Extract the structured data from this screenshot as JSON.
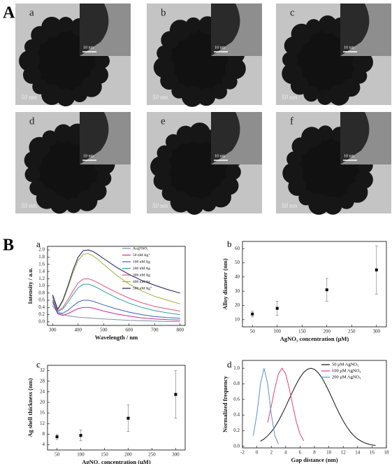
{
  "figure_labels": [
    "A",
    "B"
  ],
  "panels": [
    {
      "label": "a",
      "scale": "50 nm",
      "inset_scale": "10 nm"
    },
    {
      "label": "b",
      "scale": "50 nm",
      "inset_scale": "10 nm"
    },
    {
      "label": "c",
      "scale": "50 nm",
      "inset_scale": "10 nm"
    },
    {
      "label": "d",
      "scale": "50 nm",
      "inset_scale": "10 nm"
    },
    {
      "label": "e",
      "scale": "50 nm",
      "inset_scale": "10 nm"
    },
    {
      "label": "f",
      "scale": "50 nm",
      "inset_scale": "10 nm"
    }
  ],
  "chart_data": [
    {
      "type": "line",
      "panel": "a",
      "x_label": "Wavelength / nm",
      "y_label": "Intensity / a.u.",
      "x": [
        300,
        320,
        340,
        360,
        380,
        400,
        420,
        440,
        460,
        480,
        500,
        550,
        600,
        650,
        700,
        750,
        800
      ],
      "xlim": [
        280,
        820
      ],
      "xticks": [
        300,
        400,
        500,
        600,
        700,
        800
      ],
      "ylim": [
        -0.1,
        2.1
      ],
      "yticks": [
        {
          "value": 0,
          "label": "0.0"
        },
        {
          "value": 0.2,
          "label": "0.2"
        },
        {
          "value": 0.4,
          "label": "0.4"
        },
        {
          "value": 0.6,
          "label": "0.6"
        },
        {
          "value": 0.8,
          "label": "0.8"
        },
        {
          "value": 1,
          "label": "1.0"
        },
        {
          "value": 1.2,
          "label": "1.2"
        },
        {
          "value": 1.4,
          "label": "1.4"
        },
        {
          "value": 1.6,
          "label": "1.6"
        },
        {
          "value": 1.8,
          "label": "1.8"
        },
        {
          "value": 2,
          "label": "2.0"
        }
      ],
      "series": [
        {
          "name": "Au@SiO₂",
          "color": "#7f8fa6",
          "values": [
            0.45,
            0.25,
            0.2,
            0.17,
            0.15,
            0.13,
            0.12,
            0.11,
            0.1,
            0.09,
            0.08,
            0.06,
            0.04,
            0.03,
            0.02,
            0.01,
            0.01
          ]
        },
        {
          "name": "50 nM Ag⁺",
          "color": "#d02c90",
          "values": [
            0.55,
            0.22,
            0.18,
            0.23,
            0.3,
            0.37,
            0.4,
            0.4,
            0.38,
            0.34,
            0.3,
            0.22,
            0.16,
            0.11,
            0.08,
            0.06,
            0.05
          ]
        },
        {
          "name": "100 nM Ag",
          "color": "#3a5fcd",
          "values": [
            0.6,
            0.25,
            0.24,
            0.32,
            0.44,
            0.55,
            0.6,
            0.6,
            0.57,
            0.52,
            0.47,
            0.36,
            0.27,
            0.2,
            0.15,
            0.12,
            0.1
          ]
        },
        {
          "name": "200 nM Ag",
          "color": "#2aa198",
          "values": [
            0.68,
            0.28,
            0.36,
            0.54,
            0.76,
            0.95,
            1.04,
            1.05,
            1.0,
            0.93,
            0.85,
            0.67,
            0.52,
            0.4,
            0.31,
            0.25,
            0.2
          ]
        },
        {
          "name": "300 nM Ag",
          "color": "#e8507a",
          "values": [
            0.7,
            0.3,
            0.4,
            0.62,
            0.86,
            1.08,
            1.19,
            1.2,
            1.15,
            1.08,
            1.0,
            0.82,
            0.66,
            0.53,
            0.43,
            0.36,
            0.3
          ]
        },
        {
          "name": "400 nM Ag",
          "color": "#a0b040",
          "values": [
            0.72,
            0.33,
            0.57,
            0.95,
            1.37,
            1.71,
            1.88,
            1.9,
            1.83,
            1.72,
            1.6,
            1.3,
            1.05,
            0.86,
            0.71,
            0.6,
            0.5
          ]
        },
        {
          "name": "500 nM Ag⁺",
          "color": "#1a1a5e",
          "values": [
            0.75,
            0.35,
            0.6,
            1.0,
            1.44,
            1.8,
            1.98,
            2.0,
            1.95,
            1.86,
            1.76,
            1.52,
            1.32,
            1.15,
            1.02,
            0.9,
            0.8
          ]
        }
      ]
    },
    {
      "type": "errorbar",
      "panel": "b",
      "x_label": "AgNO₃ concentration (μM)",
      "y_label": "Alloy diameter (nm)",
      "x": [
        50,
        100,
        200,
        300
      ],
      "xlim": [
        30,
        320
      ],
      "xticks": [
        50,
        100,
        150,
        200,
        250,
        300
      ],
      "ylim": [
        5,
        65
      ],
      "yticks": [
        10,
        20,
        30,
        40,
        50,
        60
      ],
      "series": [
        {
          "color": "#000000",
          "values": [
            14,
            18,
            31,
            45
          ],
          "errors": [
            2,
            5,
            8,
            17
          ]
        }
      ]
    },
    {
      "type": "errorbar",
      "panel": "c",
      "x_label": "AgNO₃ concentration (μM)",
      "y_label": "Ag shell thickness (nm)",
      "x": [
        50,
        100,
        200,
        300
      ],
      "xlim": [
        30,
        320
      ],
      "xticks": [
        50,
        100,
        150,
        200,
        250,
        300
      ],
      "ylim": [
        2,
        34
      ],
      "yticks": [
        4,
        8,
        12,
        16,
        20,
        24,
        28,
        32
      ],
      "series": [
        {
          "color": "#000000",
          "values": [
            7,
            7.5,
            14,
            23
          ],
          "errors": [
            1,
            2,
            5,
            9
          ]
        }
      ]
    },
    {
      "type": "line",
      "panel": "d",
      "x_label": "Gap distance (nm)",
      "y_label": "Normalized frequency",
      "x": [
        -1,
        -0.5,
        0,
        0.5,
        1,
        1.5,
        2,
        2.5,
        3,
        3.5,
        4,
        4.5,
        5,
        5.5,
        6,
        6.5,
        7,
        7.5,
        8,
        8.5,
        9,
        9.5,
        10,
        10.5,
        11,
        11.5,
        12,
        12.5,
        13,
        13.5,
        14,
        14.5,
        15,
        15.5,
        16,
        16.5,
        17
      ],
      "xlim": [
        -2,
        18
      ],
      "xticks": [
        -2,
        0,
        2,
        4,
        6,
        8,
        10,
        12,
        14,
        16,
        18
      ],
      "ylim": [
        -0.02,
        1.1
      ],
      "yticks": [
        {
          "value": 0,
          "label": "0.0"
        },
        {
          "value": 0.2,
          "label": "0.2"
        },
        {
          "value": 0.4,
          "label": "0.4"
        },
        {
          "value": 0.6,
          "label": "0.6"
        },
        {
          "value": 0.8,
          "label": "0.8"
        },
        {
          "value": 1,
          "label": "1.0"
        }
      ],
      "series": [
        {
          "name": "50 μM AgNO₃",
          "color": "#111111",
          "values": [
            null,
            null,
            null,
            0.066,
            0.095,
            0.135,
            0.186,
            0.249,
            0.325,
            0.411,
            0.506,
            0.607,
            0.707,
            0.801,
            0.882,
            0.946,
            0.986,
            1.0,
            0.986,
            0.946,
            0.882,
            0.801,
            0.707,
            0.607,
            0.506,
            0.411,
            0.325,
            0.249,
            0.186,
            0.135,
            0.095,
            0.066,
            0.044,
            0.029,
            0.018,
            0.011,
            null
          ]
        },
        {
          "name": "100 μM AgNO₃",
          "color": "#e8407a",
          "values": [
            null,
            null,
            null,
            null,
            null,
            0.307,
            0.514,
            0.744,
            0.929,
            1.0,
            0.929,
            0.744,
            0.514,
            0.307,
            0.157,
            0.07,
            null,
            null,
            null,
            null,
            null,
            null,
            null,
            null,
            null,
            null,
            null,
            null,
            null,
            null,
            null,
            null,
            null,
            null,
            null,
            null,
            null
          ]
        },
        {
          "name": "200 μM AgNO₃",
          "color": "#5b8fd0",
          "values": [
            null,
            0.135,
            0.411,
            0.801,
            1.0,
            0.801,
            0.411,
            0.135,
            0.029,
            null,
            null,
            null,
            null,
            null,
            null,
            null,
            null,
            null,
            null,
            null,
            null,
            null,
            null,
            null,
            null,
            null,
            null,
            null,
            null,
            null,
            null,
            null,
            null,
            null,
            null,
            null,
            null
          ]
        }
      ]
    }
  ]
}
